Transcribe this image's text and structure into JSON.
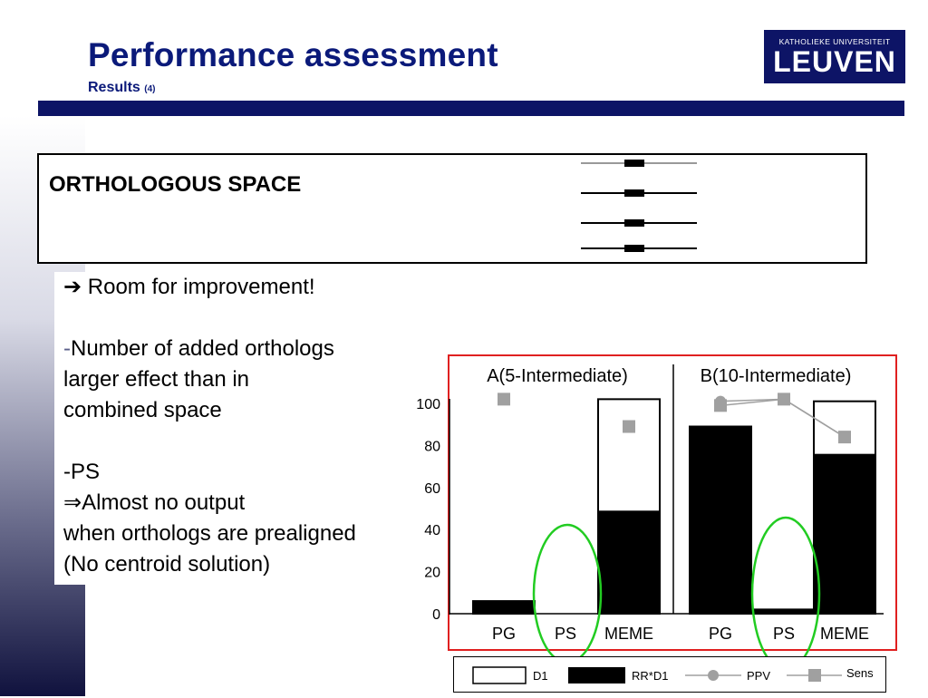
{
  "header": {
    "title": "Performance assessment",
    "subtitle": "Results",
    "subtitle_suffix": "(4)"
  },
  "logo": {
    "line1": "KATHOLIEKE UNIVERSITEIT",
    "line2": "LEUVEN"
  },
  "ortho_box": {
    "label": "ORTHOLOGOUS SPACE"
  },
  "body": {
    "arrow_icon": "right-arrow-icon",
    "improvement": "Room for improvement!",
    "point1_dash": "-",
    "point1_lines": [
      "Number of added orthologs",
      "larger effect than in",
      "combined space"
    ],
    "point2_dash": "-",
    "point2_head": "PS",
    "point2_implies": "⇒",
    "point2_lines": [
      "Almost no output",
      "when orthologs are prealigned",
      "(No centroid solution)"
    ]
  },
  "colors": {
    "title": "#0b1a7a",
    "bar_header": "#0d1466",
    "chart_frame": "#e02020",
    "highlight": "#22cc22",
    "marker": "#a0a0a0"
  },
  "chart_data": {
    "type": "bar",
    "categories": [
      "PG",
      "PS",
      "MEME"
    ],
    "yticks": [
      0,
      20,
      40,
      60,
      80,
      100
    ],
    "ylim": [
      0,
      100
    ],
    "highlighted_category": "PS",
    "legend": {
      "d1": "D1",
      "rrd1": "RR*D1",
      "ppv": "PPV",
      "sens": "Sens"
    },
    "panels": [
      {
        "title": "A(5-Intermediate)",
        "series": [
          {
            "name": "D1",
            "values": [
              6,
              0,
              102
            ]
          },
          {
            "name": "RR*D1",
            "values": [
              6,
              0,
              49
            ]
          },
          {
            "name": "PPV",
            "values": [
              null,
              null,
              null
            ]
          },
          {
            "name": "Sens",
            "values": [
              102,
              null,
              89
            ]
          }
        ]
      },
      {
        "title": "B(10-Intermediate)",
        "series": [
          {
            "name": "D1",
            "values": [
              89,
              2,
              101
            ]
          },
          {
            "name": "RR*D1",
            "values": [
              89,
              2,
              76
            ]
          },
          {
            "name": "PPV",
            "values": [
              101,
              102,
              84
            ]
          },
          {
            "name": "Sens",
            "values": [
              99,
              102,
              84
            ]
          }
        ]
      }
    ]
  }
}
